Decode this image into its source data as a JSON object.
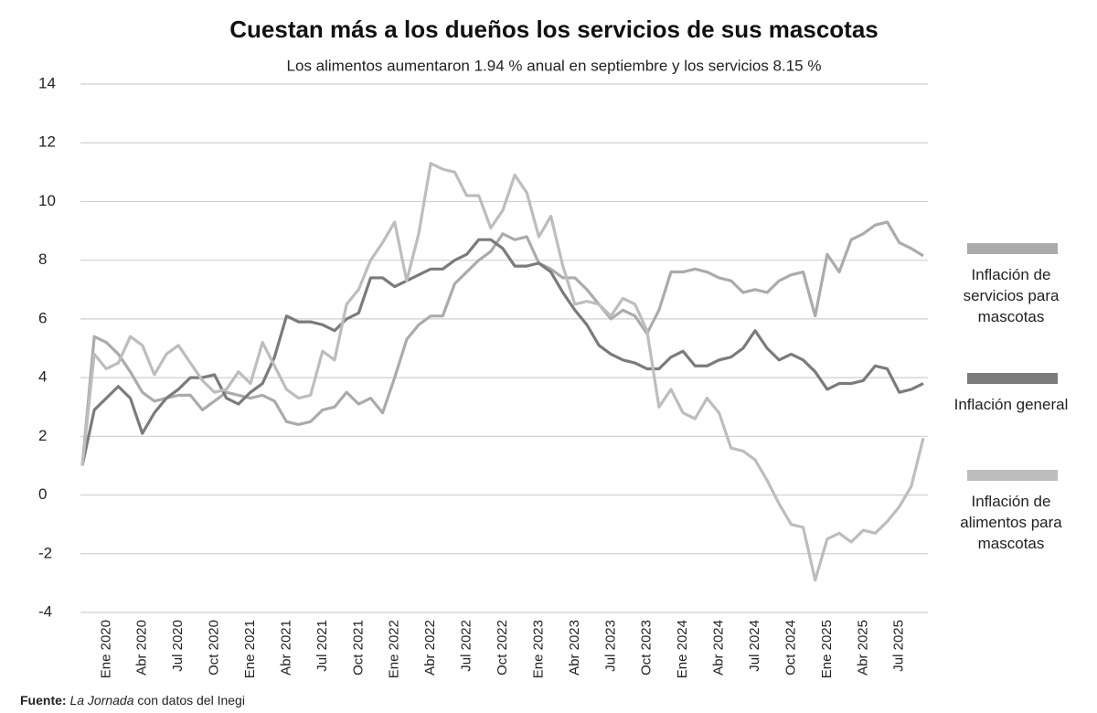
{
  "chart_data": {
    "type": "line",
    "title": "Cuestan más a los dueños los servicios de sus mascotas",
    "subtitle": "Los alimentos aumentaron 1.94 % anual en septiembre y los servicios 8.15 %",
    "categories": [
      null,
      null,
      "Ene 2020",
      null,
      null,
      "Abr 2020",
      null,
      null,
      "Jul 2020",
      null,
      null,
      "Oct 2020",
      null,
      null,
      "Ene 2021",
      null,
      null,
      "Abr 2021",
      null,
      null,
      "Jul 2021",
      null,
      null,
      "Oct 2021",
      null,
      null,
      "Ene 2022",
      null,
      null,
      "Abr 2022",
      null,
      null,
      "Jul 2022",
      null,
      null,
      "Oct 2022",
      null,
      null,
      "Ene 2023",
      null,
      null,
      "Abr 2023",
      null,
      null,
      "Jul 2023",
      null,
      null,
      "Oct 2023",
      null,
      null,
      "Ene 2024",
      null,
      null,
      "Abr 2024",
      null,
      null,
      "Jul 2024",
      null,
      null,
      "Oct 2024",
      null,
      null,
      "Ene 2025",
      null,
      null,
      "Abr 2025",
      null,
      null,
      "Jul 2025",
      null,
      null
    ],
    "series": [
      {
        "name": "Inflación de servicios para mascotas",
        "color": "#ababab",
        "values": [
          1.0,
          5.4,
          5.2,
          4.8,
          4.2,
          3.5,
          3.2,
          3.3,
          3.4,
          3.4,
          2.9,
          3.2,
          3.5,
          3.4,
          3.3,
          3.4,
          3.2,
          2.5,
          2.4,
          2.5,
          2.9,
          3.0,
          3.5,
          3.1,
          3.3,
          2.8,
          4.0,
          5.3,
          5.8,
          6.1,
          6.1,
          7.2,
          7.6,
          8.0,
          8.3,
          8.9,
          8.7,
          8.8,
          7.9,
          7.7,
          7.4,
          7.4,
          7.0,
          6.5,
          6.0,
          6.3,
          6.1,
          5.5,
          6.3,
          7.6,
          7.6,
          7.7,
          7.6,
          7.4,
          7.3,
          6.9,
          7.0,
          6.9,
          7.3,
          7.5,
          7.6,
          6.1,
          8.2,
          7.6,
          8.7,
          8.9,
          9.2,
          9.3,
          8.6,
          8.4,
          8.15
        ]
      },
      {
        "name": "Inflación general",
        "color": "#7b7b7b",
        "values": [
          1.0,
          2.9,
          3.3,
          3.7,
          3.3,
          2.1,
          2.8,
          3.3,
          3.6,
          4.0,
          4.0,
          4.1,
          3.3,
          3.1,
          3.5,
          3.8,
          4.7,
          6.1,
          5.9,
          5.9,
          5.8,
          5.6,
          6.0,
          6.2,
          7.4,
          7.4,
          7.1,
          7.3,
          7.5,
          7.7,
          7.7,
          8.0,
          8.2,
          8.7,
          8.7,
          8.4,
          7.8,
          7.8,
          7.9,
          7.6,
          6.9,
          6.3,
          5.8,
          5.1,
          4.8,
          4.6,
          4.5,
          4.3,
          4.3,
          4.7,
          4.9,
          4.4,
          4.4,
          4.6,
          4.7,
          5.0,
          5.6,
          5.0,
          4.6,
          4.8,
          4.6,
          4.2,
          3.6,
          3.8,
          3.8,
          3.9,
          4.4,
          4.3,
          3.5,
          3.6,
          3.8
        ]
      },
      {
        "name": "Inflación de alimentos para mascotas",
        "color": "#bdbdbd",
        "values": [
          1.0,
          4.8,
          4.3,
          4.5,
          5.4,
          5.1,
          4.1,
          4.8,
          5.1,
          4.5,
          3.9,
          3.5,
          3.6,
          4.2,
          3.8,
          5.2,
          4.4,
          3.6,
          3.3,
          3.4,
          4.9,
          4.6,
          6.5,
          7.0,
          8.0,
          8.6,
          9.3,
          7.3,
          8.9,
          11.3,
          11.1,
          11.0,
          10.2,
          10.2,
          9.1,
          9.7,
          10.9,
          10.3,
          8.8,
          9.5,
          7.8,
          6.5,
          6.6,
          6.5,
          6.1,
          6.7,
          6.5,
          5.6,
          3.0,
          3.6,
          2.8,
          2.6,
          3.3,
          2.8,
          1.6,
          1.5,
          1.2,
          0.5,
          -0.3,
          -1.0,
          -1.1,
          -2.9,
          -1.5,
          -1.3,
          -1.6,
          -1.2,
          -1.3,
          -0.9,
          -0.4,
          0.3,
          1.94
        ]
      }
    ],
    "ylim": [
      -4,
      14
    ],
    "yticks": [
      -4,
      -2,
      0,
      2,
      4,
      6,
      8,
      10,
      12,
      14
    ],
    "grid": true,
    "legend": "right",
    "source": {
      "label": "Fuente:",
      "publication": "La Jornada",
      "text": "con datos del Inegi"
    }
  }
}
